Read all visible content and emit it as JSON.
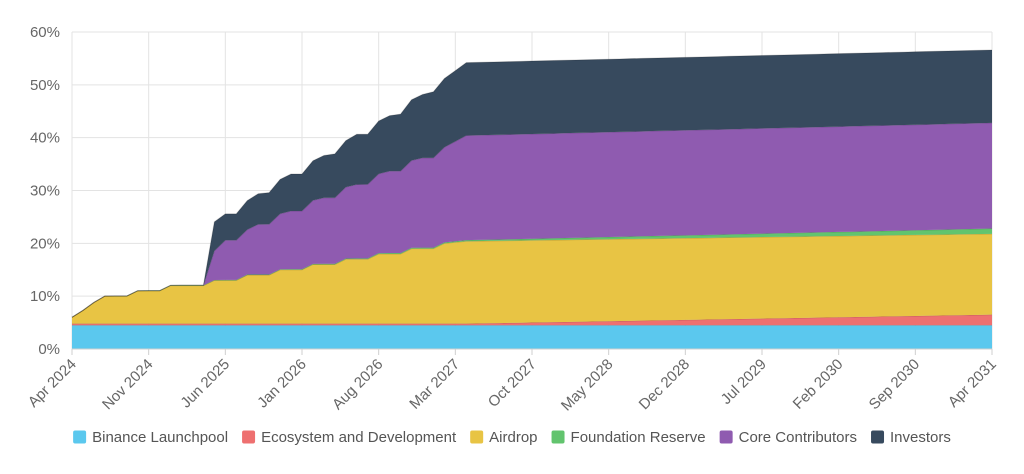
{
  "chart_data": {
    "type": "area",
    "stacked": true,
    "title": "",
    "xlabel": "",
    "ylabel": "",
    "ylim": [
      0,
      60
    ],
    "y_ticks": [
      0,
      10,
      20,
      30,
      40,
      50,
      60
    ],
    "y_tick_labels": [
      "0%",
      "10%",
      "20%",
      "30%",
      "40%",
      "50%",
      "60%"
    ],
    "x_ticks": [
      "2024-04",
      "2024-11",
      "2025-06",
      "2026-01",
      "2026-08",
      "2027-03",
      "2027-10",
      "2028-05",
      "2028-12",
      "2029-07",
      "2030-02",
      "2030-09",
      "2031-04"
    ],
    "x_tick_labels": [
      "Apr 2024",
      "Nov 2024",
      "Jun 2025",
      "Jan 2026",
      "Aug 2026",
      "Mar 2027",
      "Oct 2027",
      "May 2028",
      "Dec 2028",
      "Jul 2029",
      "Feb 2030",
      "Sep 2030",
      "Apr 2031"
    ],
    "x_range": [
      "2024-04",
      "2031-04"
    ],
    "grid": true,
    "legend_position": "bottom",
    "series": [
      {
        "name": "Binance Launchpool",
        "color": "#5bc8ee",
        "points": [
          [
            "2024-04",
            4.5
          ],
          [
            "2031-04",
            4.5
          ]
        ]
      },
      {
        "name": "Ecosystem and Development",
        "color": "#ee7070",
        "points": [
          [
            "2024-04",
            0.3
          ],
          [
            "2027-04",
            0.3
          ],
          [
            "2031-04",
            2.0
          ]
        ]
      },
      {
        "name": "Airdrop",
        "color": "#e8c444",
        "points": [
          [
            "2024-04",
            1.2
          ],
          [
            "2024-05",
            2.5
          ],
          [
            "2024-06",
            4.0
          ],
          [
            "2024-07",
            5.2
          ],
          [
            "2024-08",
            5.2
          ],
          [
            "2024-09",
            5.2
          ],
          [
            "2024-10",
            6.2
          ],
          [
            "2024-11",
            6.2
          ],
          [
            "2024-12",
            6.2
          ],
          [
            "2025-01",
            7.2
          ],
          [
            "2025-02",
            7.2
          ],
          [
            "2025-03",
            7.2
          ],
          [
            "2025-04",
            7.2
          ],
          [
            "2025-05",
            8.2
          ],
          [
            "2025-06",
            8.2
          ],
          [
            "2025-07",
            8.2
          ],
          [
            "2025-08",
            9.2
          ],
          [
            "2025-09",
            9.2
          ],
          [
            "2025-10",
            9.2
          ],
          [
            "2025-11",
            10.2
          ],
          [
            "2025-12",
            10.2
          ],
          [
            "2026-01",
            10.2
          ],
          [
            "2026-02",
            11.2
          ],
          [
            "2026-03",
            11.2
          ],
          [
            "2026-04",
            11.2
          ],
          [
            "2026-05",
            12.2
          ],
          [
            "2026-06",
            12.2
          ],
          [
            "2026-07",
            12.2
          ],
          [
            "2026-08",
            13.2
          ],
          [
            "2026-09",
            13.2
          ],
          [
            "2026-10",
            13.2
          ],
          [
            "2026-11",
            14.2
          ],
          [
            "2026-12",
            14.2
          ],
          [
            "2027-01",
            14.2
          ],
          [
            "2027-02",
            15.2
          ],
          [
            "2027-04",
            15.6
          ],
          [
            "2031-04",
            15.3
          ]
        ]
      },
      {
        "name": "Foundation Reserve",
        "color": "#62c46e",
        "points": [
          [
            "2024-04",
            0
          ],
          [
            "2027-04",
            0.2
          ],
          [
            "2031-04",
            1.0
          ]
        ]
      },
      {
        "name": "Core Contributors",
        "color": "#8f5bb0",
        "points": [
          [
            "2024-04",
            0
          ],
          [
            "2025-04",
            0
          ],
          [
            "2025-05",
            5.5
          ],
          [
            "2025-06",
            7.5
          ],
          [
            "2025-07",
            7.5
          ],
          [
            "2025-08",
            8.5
          ],
          [
            "2025-09",
            9.5
          ],
          [
            "2025-10",
            9.5
          ],
          [
            "2025-11",
            10.5
          ],
          [
            "2025-12",
            11.0
          ],
          [
            "2026-01",
            11.0
          ],
          [
            "2026-02",
            12.0
          ],
          [
            "2026-03",
            12.5
          ],
          [
            "2026-04",
            12.5
          ],
          [
            "2026-05",
            13.5
          ],
          [
            "2026-06",
            14.0
          ],
          [
            "2026-07",
            14.0
          ],
          [
            "2026-08",
            15.0
          ],
          [
            "2026-09",
            15.5
          ],
          [
            "2026-10",
            15.5
          ],
          [
            "2026-11",
            16.5
          ],
          [
            "2026-12",
            17.0
          ],
          [
            "2027-01",
            17.0
          ],
          [
            "2027-02",
            18.0
          ],
          [
            "2027-04",
            19.8
          ],
          [
            "2031-04",
            20.0
          ]
        ]
      },
      {
        "name": "Investors",
        "color": "#374a5e",
        "points": [
          [
            "2024-04",
            0
          ],
          [
            "2025-04",
            0
          ],
          [
            "2025-05",
            5.5
          ],
          [
            "2025-06",
            5.0
          ],
          [
            "2025-07",
            5.0
          ],
          [
            "2025-08",
            5.5
          ],
          [
            "2025-09",
            5.8
          ],
          [
            "2025-10",
            6.0
          ],
          [
            "2025-11",
            6.5
          ],
          [
            "2025-12",
            7.0
          ],
          [
            "2026-01",
            7.0
          ],
          [
            "2026-02",
            7.5
          ],
          [
            "2026-03",
            8.0
          ],
          [
            "2026-04",
            8.3
          ],
          [
            "2026-05",
            8.8
          ],
          [
            "2026-06",
            9.5
          ],
          [
            "2026-07",
            9.5
          ],
          [
            "2026-08",
            10.0
          ],
          [
            "2026-09",
            10.5
          ],
          [
            "2026-10",
            10.8
          ],
          [
            "2026-11",
            11.5
          ],
          [
            "2026-12",
            12.0
          ],
          [
            "2027-01",
            12.5
          ],
          [
            "2027-02",
            13.0
          ],
          [
            "2027-04",
            13.8
          ],
          [
            "2031-04",
            13.8
          ]
        ]
      }
    ]
  }
}
